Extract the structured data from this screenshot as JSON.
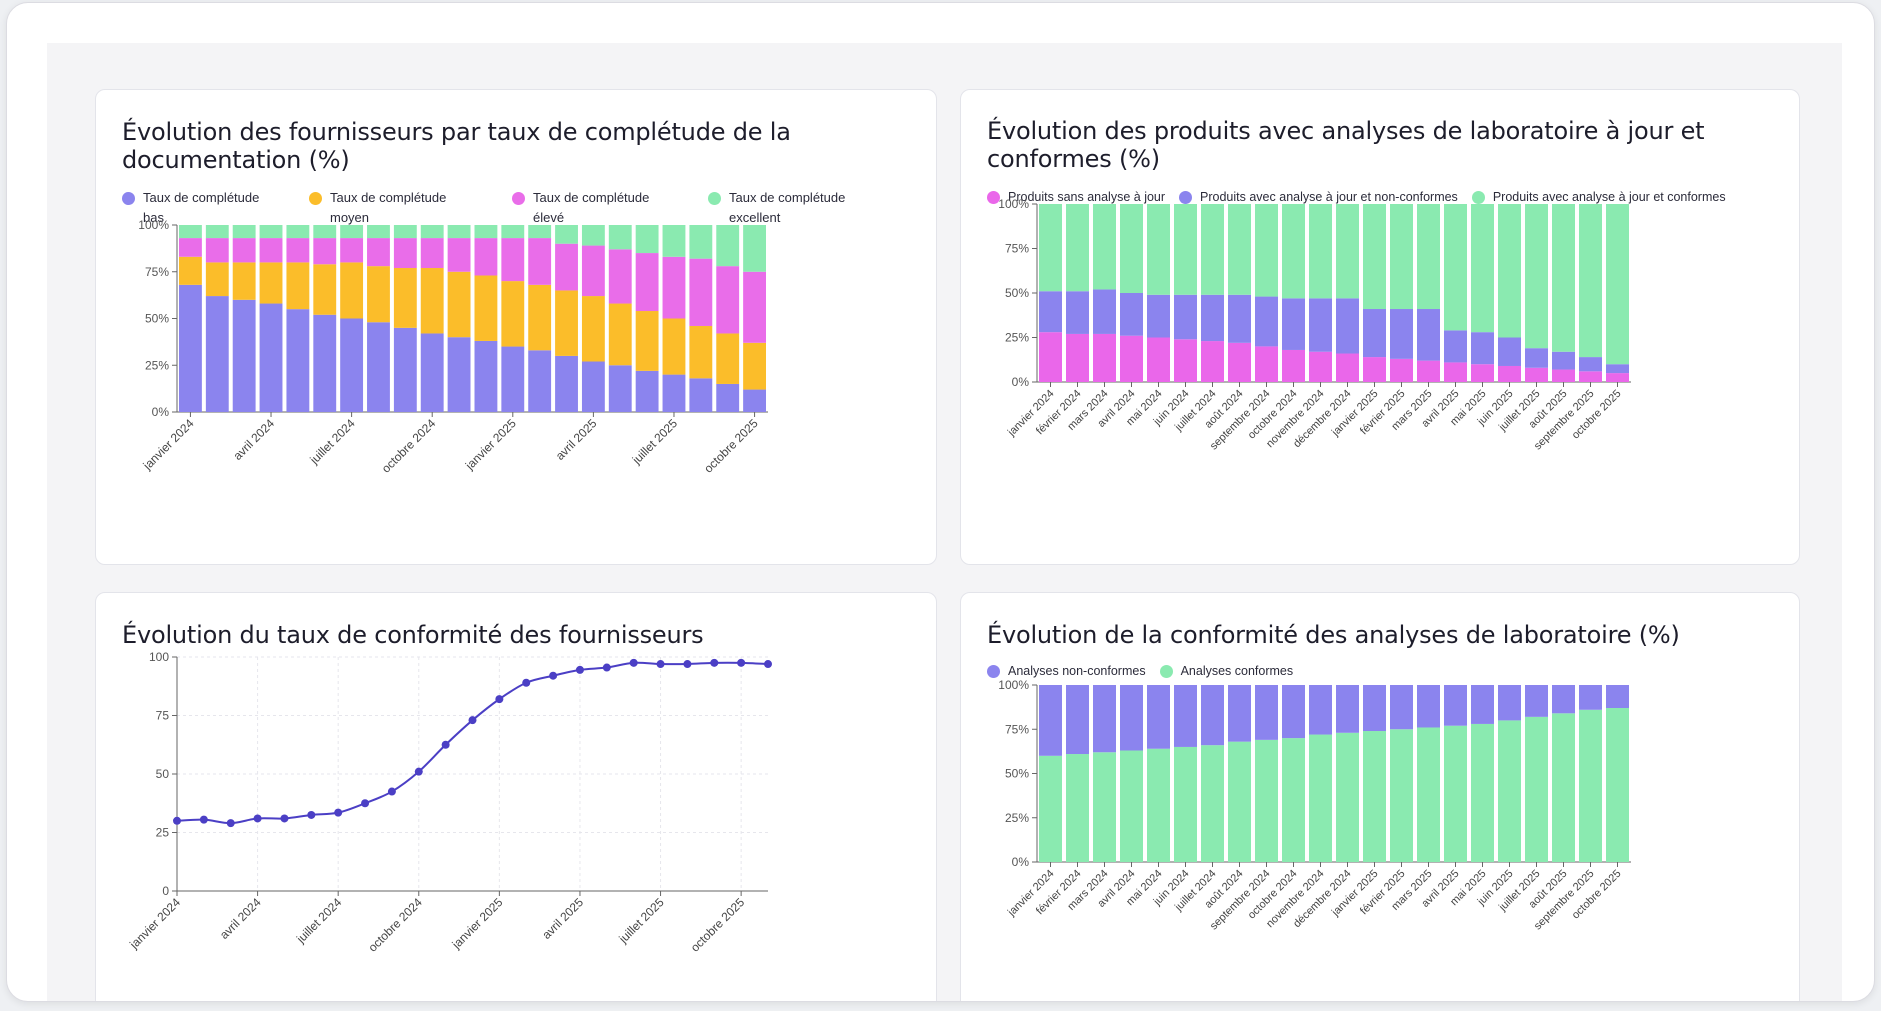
{
  "colors": {
    "bas": "#8b84ee",
    "moyen": "#fbbd2a",
    "eleve": "#e96de9",
    "excellent": "#8aeab0",
    "sans_analyse": "#ea67ea",
    "non_conformes": "#8b84ee",
    "conformes": "#8aeab0",
    "line": "#4b3fc5"
  },
  "chart_data": [
    {
      "id": "chart1",
      "type": "bar",
      "stacked": true,
      "title": "Évolution des fournisseurs par taux de complétude de la documentation (%)",
      "legend": [
        {
          "name": "Taux de complétude bas",
          "line1": "Taux de complétude",
          "line2": "bas",
          "color": "#8b84ee"
        },
        {
          "name": "Taux de complétude moyen",
          "line1": "Taux de complétude",
          "line2": "moyen",
          "color": "#fbbd2a"
        },
        {
          "name": "Taux de complétude élevé",
          "line1": "Taux de complétude",
          "line2": "élevé",
          "color": "#e96de9"
        },
        {
          "name": "Taux de complétude excellent",
          "line1": "Taux de complétude",
          "line2": "excellent",
          "color": "#8aeab0"
        }
      ],
      "y_ticks": [
        "0%",
        "25%",
        "50%",
        "75%",
        "100%"
      ],
      "ylim": [
        0,
        100
      ],
      "x_tick_labels": [
        {
          "index": 0,
          "label": "janvier 2024"
        },
        {
          "index": 3,
          "label": "avril 2024"
        },
        {
          "index": 6,
          "label": "juillet 2024"
        },
        {
          "index": 9,
          "label": "octobre 2024"
        },
        {
          "index": 12,
          "label": "janvier 2025"
        },
        {
          "index": 15,
          "label": "avril 2025"
        },
        {
          "index": 18,
          "label": "juillet 2025"
        },
        {
          "index": 21,
          "label": "octobre 2025"
        }
      ],
      "series": [
        {
          "name": "Taux de complétude bas",
          "values": [
            68,
            62,
            60,
            58,
            55,
            52,
            50,
            48,
            45,
            42,
            40,
            38,
            35,
            33,
            30,
            27,
            25,
            22,
            20,
            18,
            15,
            12
          ]
        },
        {
          "name": "Taux de complétude moyen",
          "values": [
            15,
            18,
            20,
            22,
            25,
            27,
            30,
            30,
            32,
            35,
            35,
            35,
            35,
            35,
            35,
            35,
            33,
            32,
            30,
            28,
            27,
            25
          ]
        },
        {
          "name": "Taux de complétude élevé",
          "values": [
            10,
            13,
            13,
            13,
            13,
            14,
            13,
            15,
            16,
            16,
            18,
            20,
            23,
            25,
            25,
            27,
            29,
            31,
            33,
            36,
            36,
            38
          ]
        },
        {
          "name": "Taux de complétude excellent",
          "values": [
            7,
            7,
            7,
            7,
            7,
            7,
            7,
            7,
            7,
            7,
            7,
            7,
            7,
            7,
            10,
            11,
            13,
            15,
            17,
            18,
            22,
            25
          ]
        }
      ]
    },
    {
      "id": "chart2",
      "type": "bar",
      "stacked": true,
      "title": "Évolution des produits avec analyses de laboratoire à jour et conformes (%)",
      "legend": [
        {
          "name": "Produits sans analyse à jour",
          "color": "#ea67ea"
        },
        {
          "name": "Produits avec analyse à jour et non-conformes",
          "color": "#8b84ee"
        },
        {
          "name": "Produits avec analyse à jour et conformes",
          "color": "#8aeab0"
        }
      ],
      "y_ticks": [
        "0%",
        "25%",
        "50%",
        "75%",
        "100%"
      ],
      "ylim": [
        0,
        100
      ],
      "categories": [
        "janvier 2024",
        "février 2024",
        "mars 2024",
        "avril 2024",
        "mai 2024",
        "juin 2024",
        "juillet 2024",
        "août 2024",
        "septembre 2024",
        "octobre 2024",
        "novembre 2024",
        "décembre 2024",
        "janvier 2025",
        "février 2025",
        "mars 2025",
        "avril 2025",
        "mai 2025",
        "juin 2025",
        "juillet 2025",
        "août 2025",
        "septembre 2025",
        "octobre 2025"
      ],
      "series": [
        {
          "name": "Produits sans analyse à jour",
          "values": [
            28,
            27,
            27,
            26,
            25,
            24,
            23,
            22,
            20,
            18,
            17,
            16,
            14,
            13,
            12,
            11,
            10,
            9,
            8,
            7,
            6,
            5
          ]
        },
        {
          "name": "Produits avec analyse à jour et non-conformes",
          "values": [
            23,
            24,
            25,
            24,
            24,
            25,
            26,
            27,
            28,
            29,
            30,
            31,
            27,
            28,
            29,
            18,
            18,
            16,
            11,
            10,
            8,
            5
          ]
        },
        {
          "name": "Produits avec analyse à jour et conformes",
          "values": [
            49,
            49,
            48,
            50,
            51,
            51,
            51,
            51,
            52,
            53,
            53,
            53,
            59,
            59,
            59,
            71,
            72,
            75,
            81,
            83,
            86,
            90
          ]
        }
      ]
    },
    {
      "id": "chart3",
      "type": "line",
      "title": "Évolution du taux de conformité des fournisseurs",
      "y_ticks": [
        "0",
        "25",
        "50",
        "75",
        "100"
      ],
      "ylim": [
        0,
        100
      ],
      "x_tick_labels": [
        {
          "index": 0,
          "label": "janvier 2024"
        },
        {
          "index": 3,
          "label": "avril 2024"
        },
        {
          "index": 6,
          "label": "juillet 2024"
        },
        {
          "index": 9,
          "label": "octobre 2024"
        },
        {
          "index": 12,
          "label": "janvier 2025"
        },
        {
          "index": 15,
          "label": "avril 2025"
        },
        {
          "index": 18,
          "label": "juillet 2025"
        },
        {
          "index": 21,
          "label": "octobre 2025"
        }
      ],
      "series": [
        {
          "name": "Taux de conformité",
          "values": [
            30,
            30.5,
            29,
            31,
            31,
            32.5,
            33.5,
            37.5,
            42.5,
            51,
            62.5,
            73,
            82,
            89,
            92,
            94.5,
            95.5,
            97.5,
            97,
            97,
            97.5,
            97.5,
            97
          ]
        }
      ]
    },
    {
      "id": "chart4",
      "type": "bar",
      "stacked": true,
      "title": "Évolution de la conformité des analyses de laboratoire (%)",
      "legend": [
        {
          "name": "Analyses non-conformes",
          "color": "#8b84ee"
        },
        {
          "name": "Analyses conformes",
          "color": "#8aeab0"
        }
      ],
      "y_ticks": [
        "0%",
        "25%",
        "50%",
        "75%",
        "100%"
      ],
      "ylim": [
        0,
        100
      ],
      "categories": [
        "janvier 2024",
        "février 2024",
        "mars 2024",
        "avril 2024",
        "mai 2024",
        "juin 2024",
        "juillet 2024",
        "août 2024",
        "septembre 2024",
        "octobre 2024",
        "novembre 2024",
        "décembre 2024",
        "janvier 2025",
        "février 2025",
        "mars 2025",
        "avril 2025",
        "mai 2025",
        "juin 2025",
        "juillet 2025",
        "août 2025",
        "septembre 2025",
        "octobre 2025"
      ],
      "series": [
        {
          "name": "Analyses conformes",
          "values": [
            60,
            61,
            62,
            63,
            64,
            65,
            66,
            68,
            69,
            70,
            72,
            73,
            74,
            75,
            76,
            77,
            78,
            80,
            82,
            84,
            86,
            87
          ]
        },
        {
          "name": "Analyses non-conformes",
          "values": [
            40,
            39,
            38,
            37,
            36,
            35,
            34,
            32,
            31,
            30,
            28,
            27,
            26,
            25,
            24,
            23,
            22,
            20,
            18,
            16,
            14,
            13
          ]
        }
      ]
    }
  ]
}
